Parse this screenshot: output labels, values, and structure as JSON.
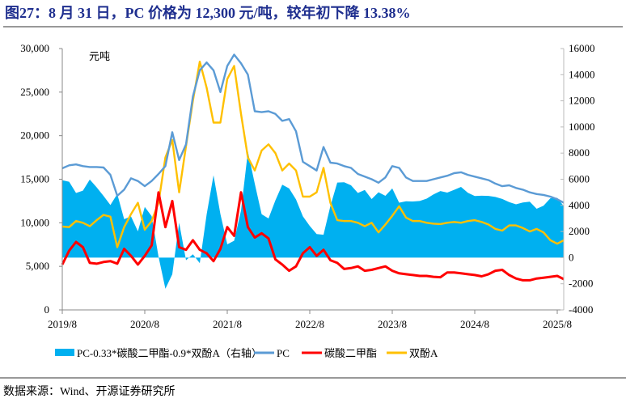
{
  "title": "图27：8 月 31 日，PC 价格为 12,300 元/吨，较年初下降 13.38%",
  "source": "数据来源：Wind、开源证券研究所",
  "chart_data": {
    "type": "line+area",
    "unit_label": "元吨",
    "left_axis": {
      "ylim": [
        0,
        30000
      ],
      "ticks": [
        "0",
        "5,000",
        "10,000",
        "15,000",
        "20,000",
        "25,000",
        "30,000"
      ],
      "tick_values": [
        0,
        5000,
        10000,
        15000,
        20000,
        25000,
        30000
      ]
    },
    "right_axis": {
      "ylim": [
        -4000,
        16000
      ],
      "ticks": [
        "-4000",
        "-2000",
        "0",
        "2000",
        "4000",
        "6000",
        "8000",
        "10000",
        "12000",
        "14000",
        "16000"
      ],
      "tick_values": [
        -4000,
        -2000,
        0,
        2000,
        4000,
        6000,
        8000,
        10000,
        12000,
        14000,
        16000
      ]
    },
    "x_ticks": [
      "2019/8",
      "2020/8",
      "2021/8",
      "2022/8",
      "2023/8",
      "2024/8",
      "2025/8"
    ],
    "grid": false,
    "legend_placement": "bottom",
    "x": [
      "2019/8",
      "2019/9",
      "2019/10",
      "2019/11",
      "2019/12",
      "2020/1",
      "2020/2",
      "2020/3",
      "2020/4",
      "2020/5",
      "2020/6",
      "2020/7",
      "2020/8",
      "2020/9",
      "2020/10",
      "2020/11",
      "2020/12",
      "2021/1",
      "2021/2",
      "2021/3",
      "2021/4",
      "2021/5",
      "2021/6",
      "2021/7",
      "2021/8",
      "2021/9",
      "2021/10",
      "2021/11",
      "2021/12",
      "2022/1",
      "2022/2",
      "2022/3",
      "2022/4",
      "2022/5",
      "2022/6",
      "2022/7",
      "2022/8",
      "2022/9",
      "2022/10",
      "2022/11",
      "2022/12",
      "2023/1",
      "2023/2",
      "2023/3",
      "2023/4",
      "2023/5",
      "2023/6",
      "2023/7",
      "2023/8",
      "2023/9",
      "2023/10",
      "2023/11",
      "2023/12",
      "2024/1",
      "2024/2",
      "2024/3",
      "2024/4",
      "2024/5",
      "2024/6",
      "2024/7",
      "2024/8",
      "2024/9",
      "2024/10",
      "2024/11",
      "2024/12",
      "2025/1",
      "2025/2",
      "2025/3",
      "2025/4",
      "2025/5",
      "2025/6",
      "2025/7",
      "2025/8",
      "2025/8/31"
    ],
    "series": [
      {
        "name": "PC-0.33*碳酸二甲酯-0.9*双酚A（右轴）",
        "type": "area",
        "axis": "right",
        "color": "#00B0F0",
        "values": [
          5921,
          5806,
          4946,
          5124,
          5978,
          5381,
          4725,
          4022,
          4871,
          2940,
          3154,
          2014,
          3874,
          3178,
          75,
          -2385,
          -1275,
          2674,
          -197,
          260,
          -427,
          3305,
          6302,
          3340,
          1015,
          1295,
          3595,
          8115,
          5661,
          3326,
          2994,
          4386,
          5584,
          5295,
          4450,
          3155,
          2424,
          1804,
          1753,
          3949,
          5748,
          5769,
          5536,
          4950,
          5175,
          4482,
          5006,
          4730,
          5295,
          4204,
          4307,
          4300,
          4333,
          4513,
          4836,
          5097,
          4981,
          5191,
          5414,
          4967,
          4710,
          4739,
          4727,
          4645,
          4492,
          4250,
          4082,
          4218,
          4278,
          3742,
          3969,
          4546,
          4573,
          3935
        ]
      },
      {
        "name": "PC",
        "type": "line",
        "axis": "left",
        "color": "#5B9BD5",
        "values": [
          16250,
          16600,
          16700,
          16500,
          16400,
          16400,
          16350,
          15500,
          13100,
          13800,
          15100,
          14800,
          14200,
          14800,
          15600,
          16500,
          20400,
          17200,
          19000,
          24500,
          27500,
          28400,
          27500,
          25000,
          28000,
          29300,
          28300,
          27000,
          22800,
          22700,
          22800,
          22500,
          21700,
          21900,
          20500,
          17000,
          16500,
          16000,
          18700,
          16900,
          16800,
          16500,
          16300,
          15600,
          15300,
          15000,
          14600,
          15200,
          16500,
          16300,
          15200,
          14800,
          14800,
          14800,
          15000,
          15200,
          15400,
          15700,
          15800,
          15500,
          15300,
          15100,
          14900,
          14500,
          14200,
          14300,
          14000,
          13800,
          13500,
          13300,
          13200,
          13000,
          12700,
          12300
        ]
      },
      {
        "name": "碳酸二甲酯",
        "type": "line",
        "axis": "left",
        "color": "#FF0000",
        "values": [
          5200,
          6800,
          7800,
          7200,
          5400,
          5300,
          5500,
          5600,
          5300,
          7000,
          6200,
          5200,
          6200,
          7400,
          13500,
          9500,
          12500,
          7200,
          6900,
          8000,
          6900,
          6500,
          5600,
          7000,
          9500,
          8500,
          13500,
          9500,
          8300,
          8800,
          8200,
          5800,
          5200,
          4500,
          5000,
          6500,
          7200,
          6200,
          6900,
          5700,
          5400,
          4700,
          4800,
          5000,
          4500,
          4600,
          4800,
          5000,
          4500,
          4200,
          4100,
          4000,
          3900,
          3900,
          3800,
          3750,
          4300,
          4300,
          4200,
          4100,
          4000,
          3850,
          4100,
          4500,
          4600,
          4000,
          3600,
          3400,
          3400,
          3600,
          3700,
          3800,
          3900,
          3530
        ]
      },
      {
        "name": "双酚A",
        "type": "line",
        "axis": "left",
        "color": "#FFC000",
        "values": [
          9570,
          9500,
          10200,
          10000,
          9600,
          10300,
          10900,
          10700,
          7200,
          9500,
          11000,
          12300,
          9200,
          10200,
          12300,
          17500,
          19500,
          13500,
          18800,
          24000,
          28500,
          25500,
          21500,
          21500,
          26500,
          28000,
          22500,
          17500,
          16000,
          18300,
          19000,
          18000,
          16000,
          16800,
          16000,
          13000,
          13000,
          13500,
          16300,
          12300,
          10300,
          10200,
          10200,
          10000,
          9600,
          10000,
          8900,
          9800,
          10800,
          11900,
          10600,
          10200,
          10200,
          10000,
          9900,
          9850,
          10000,
          10100,
          10000,
          10200,
          10300,
          10100,
          9800,
          9300,
          9100,
          9700,
          9700,
          9400,
          9000,
          9300,
          8900,
          8000,
          7600,
          8000
        ]
      }
    ]
  }
}
